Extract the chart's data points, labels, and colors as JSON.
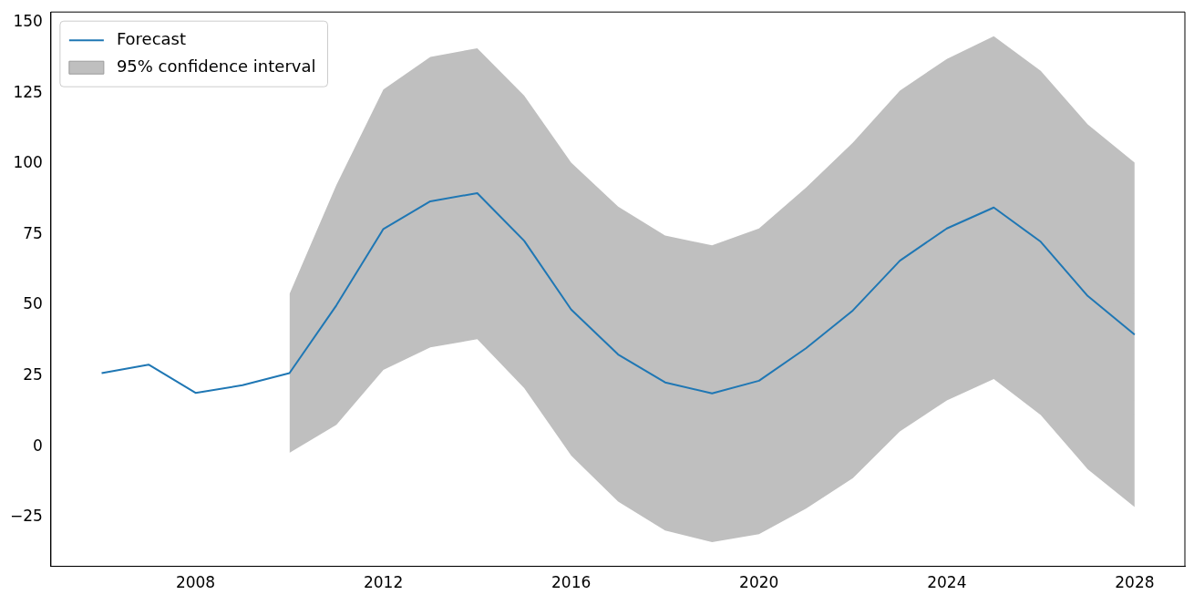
{
  "chart_data": {
    "type": "line",
    "x": [
      2006,
      2007,
      2008,
      2009,
      2010,
      2011,
      2012,
      2013,
      2014,
      2015,
      2016,
      2017,
      2018,
      2019,
      2020,
      2021,
      2022,
      2023,
      2024,
      2025,
      2026,
      2027,
      2028
    ],
    "series": [
      {
        "name": "Forecast",
        "color": "#1f77b4",
        "values": [
          26,
          29,
          19,
          21.7,
          26,
          50,
          77,
          86.8,
          89.7,
          72.8,
          48.5,
          32.6,
          22.7,
          18.8,
          23.3,
          34.8,
          48.2,
          65.8,
          77.2,
          84.6,
          72.5,
          53.3,
          39.6
        ]
      },
      {
        "type": "area",
        "name": "95% confidence interval",
        "color": "#bfbfbf",
        "values": [
          null,
          null,
          null,
          null,
          null,
          null,
          null,
          null,
          null,
          null,
          null,
          null,
          null,
          null,
          null,
          null,
          null,
          null,
          null,
          null,
          null,
          null,
          null
        ],
        "lower": [
          null,
          null,
          null,
          null,
          -2.2,
          7.7,
          27.1,
          35.1,
          38,
          20.7,
          -3.2,
          -19.5,
          -29.7,
          -33.8,
          -31,
          -22,
          -11.2,
          5.4,
          16.3,
          23.9,
          11.2,
          -8,
          -21.4
        ],
        "upper": [
          null,
          null,
          null,
          null,
          54,
          92.6,
          126.4,
          137.9,
          141,
          124.2,
          100.5,
          84.9,
          74.7,
          71.2,
          77.2,
          91.6,
          107.6,
          126,
          137.2,
          145.2,
          133,
          114,
          100.5
        ]
      }
    ],
    "xlim": [
      2004.92,
      2029.07
    ],
    "xticks": [
      2008,
      2012,
      2016,
      2020,
      2024,
      2028
    ],
    "ylim": [
      -42.4,
      153.8
    ],
    "yticks": [
      {
        "value": -25,
        "label": "−25"
      },
      0,
      25,
      50,
      75,
      100,
      125,
      150
    ],
    "legend": "top left",
    "grid": false
  }
}
